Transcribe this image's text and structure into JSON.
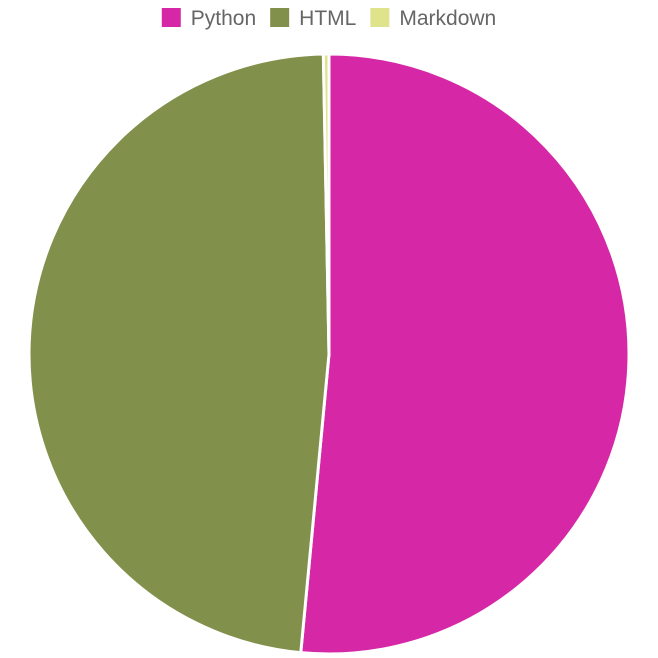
{
  "chart_data": {
    "type": "pie",
    "title": "",
    "legend_position": "top",
    "series": [
      {
        "name": "Python",
        "value": 51.5,
        "color": "#d627a6"
      },
      {
        "name": "HTML",
        "value": 48.2,
        "color": "#81904a"
      },
      {
        "name": "Markdown",
        "value": 0.3,
        "color": "#dfe38c"
      }
    ]
  }
}
